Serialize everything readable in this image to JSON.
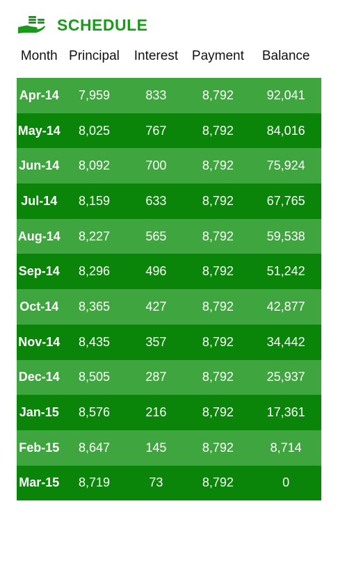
{
  "header": {
    "title": "SCHEDULE",
    "icon": "money-hand-icon",
    "accent_color": "#1a9a1a"
  },
  "columns": [
    "Month",
    "Principal",
    "Interest",
    "Payment",
    "Balance"
  ],
  "rows": [
    {
      "month": "Apr-14",
      "principal": "7,959",
      "interest": "833",
      "payment": "8,792",
      "balance": "92,041"
    },
    {
      "month": "May-14",
      "principal": "8,025",
      "interest": "767",
      "payment": "8,792",
      "balance": "84,016"
    },
    {
      "month": "Jun-14",
      "principal": "8,092",
      "interest": "700",
      "payment": "8,792",
      "balance": "75,924"
    },
    {
      "month": "Jul-14",
      "principal": "8,159",
      "interest": "633",
      "payment": "8,792",
      "balance": "67,765"
    },
    {
      "month": "Aug-14",
      "principal": "8,227",
      "interest": "565",
      "payment": "8,792",
      "balance": "59,538"
    },
    {
      "month": "Sep-14",
      "principal": "8,296",
      "interest": "496",
      "payment": "8,792",
      "balance": "51,242"
    },
    {
      "month": "Oct-14",
      "principal": "8,365",
      "interest": "427",
      "payment": "8,792",
      "balance": "42,877"
    },
    {
      "month": "Nov-14",
      "principal": "8,435",
      "interest": "357",
      "payment": "8,792",
      "balance": "34,442"
    },
    {
      "month": "Dec-14",
      "principal": "8,505",
      "interest": "287",
      "payment": "8,792",
      "balance": "25,937"
    },
    {
      "month": "Jan-15",
      "principal": "8,576",
      "interest": "216",
      "payment": "8,792",
      "balance": "17,361"
    },
    {
      "month": "Feb-15",
      "principal": "8,647",
      "interest": "145",
      "payment": "8,792",
      "balance": "8,714"
    },
    {
      "month": "Mar-15",
      "principal": "8,719",
      "interest": "73",
      "payment": "8,792",
      "balance": "0"
    }
  ],
  "row_colors": {
    "light": "#3fa53f",
    "dark": "#0a850a"
  }
}
